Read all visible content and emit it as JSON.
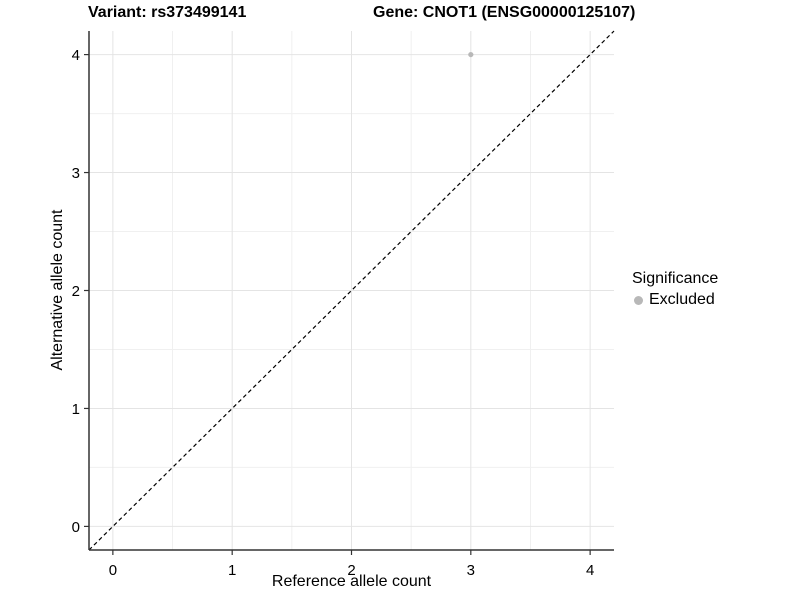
{
  "title": {
    "variant": "Variant: rs373499141",
    "gene": "Gene: CNOT1 (ENSG00000125107)"
  },
  "axes": {
    "x_label": "Reference allele count",
    "y_label": "Alternative allele count",
    "x_tick_labels": [
      "0",
      "1",
      "2",
      "3",
      "4"
    ],
    "y_tick_labels": [
      "0",
      "1",
      "2",
      "3",
      "4"
    ]
  },
  "legend": {
    "title": "Significance",
    "items": [
      {
        "label": "Excluded",
        "color": "#b8b8b8"
      }
    ]
  },
  "colors": {
    "point": "#b8b8b8",
    "grid_major": "#e4e4e4",
    "grid_minor": "#f0f0f0",
    "axis_line": "#333333",
    "reference_line": "#000000",
    "background": "#ffffff",
    "text": "#000000"
  },
  "chart_data": {
    "type": "scatter",
    "title": "Variant: rs373499141    Gene: CNOT1 (ENSG00000125107)",
    "xlabel": "Reference allele count",
    "ylabel": "Alternative allele count",
    "xlim": [
      -0.2,
      4.2
    ],
    "ylim": [
      -0.2,
      4.2
    ],
    "x_major_ticks": [
      0,
      1,
      2,
      3,
      4
    ],
    "y_major_ticks": [
      0,
      1,
      2,
      3,
      4
    ],
    "x_minor_ticks": [
      0.5,
      1.5,
      2.5,
      3.5
    ],
    "y_minor_ticks": [
      0.5,
      1.5,
      2.5,
      3.5
    ],
    "grid": true,
    "legend_position": "right",
    "legend_title": "Significance",
    "series": [
      {
        "name": "Excluded",
        "color": "#b8b8b8",
        "marker": "circle",
        "points": [
          [
            3,
            4
          ]
        ]
      }
    ],
    "reference_line": {
      "type": "identity",
      "slope": 1,
      "intercept": 0,
      "style": "dashed",
      "color": "#000000"
    }
  }
}
